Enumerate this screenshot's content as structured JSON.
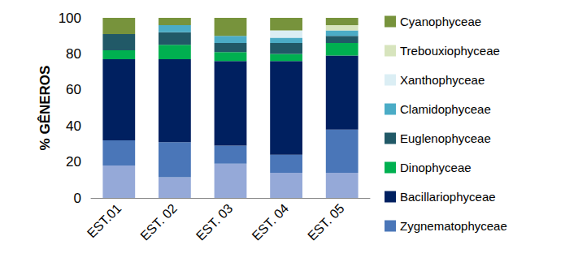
{
  "chart_data": {
    "type": "bar",
    "stacked": true,
    "grid": false,
    "legend": "right",
    "ylabel": "% GÊNEROS",
    "categories": [
      "EST.01",
      "EST. 02",
      "EST. 03",
      "EST. 04",
      "EST. 05"
    ],
    "ylim": [
      0,
      100
    ],
    "yticks": [
      0,
      20,
      40,
      60,
      80,
      100
    ],
    "series": [
      {
        "name": null,
        "color": "#95a9d8",
        "values": [
          18,
          11.5,
          19,
          14,
          14
        ]
      },
      {
        "name": "Zygnematophyceae",
        "color": "#4a76b8",
        "values": [
          14,
          19.5,
          10,
          10,
          24
        ]
      },
      {
        "name": "Bacillariophyceae",
        "color": "#002060",
        "values": [
          45,
          46,
          47,
          52,
          41
        ]
      },
      {
        "name": "Dinophyceae",
        "color": "#00b050",
        "values": [
          5,
          8,
          5,
          4,
          7
        ]
      },
      {
        "name": "Euglenophyceae",
        "color": "#215967",
        "values": [
          9,
          7,
          5,
          6,
          4
        ]
      },
      {
        "name": "Clamidophyceae",
        "color": "#4bacc6",
        "values": [
          0,
          4,
          4,
          3,
          3
        ]
      },
      {
        "name": "Xanthophyceae",
        "color": "#dbeef4",
        "values": [
          0,
          0,
          0,
          4,
          0
        ]
      },
      {
        "name": "Trebouxiophyceae",
        "color": "#d7e4bd",
        "values": [
          0,
          0,
          0,
          0,
          3
        ]
      },
      {
        "name": "Cyanophyceae",
        "color": "#77933c",
        "values": [
          9,
          4,
          10,
          7,
          4
        ]
      }
    ]
  }
}
